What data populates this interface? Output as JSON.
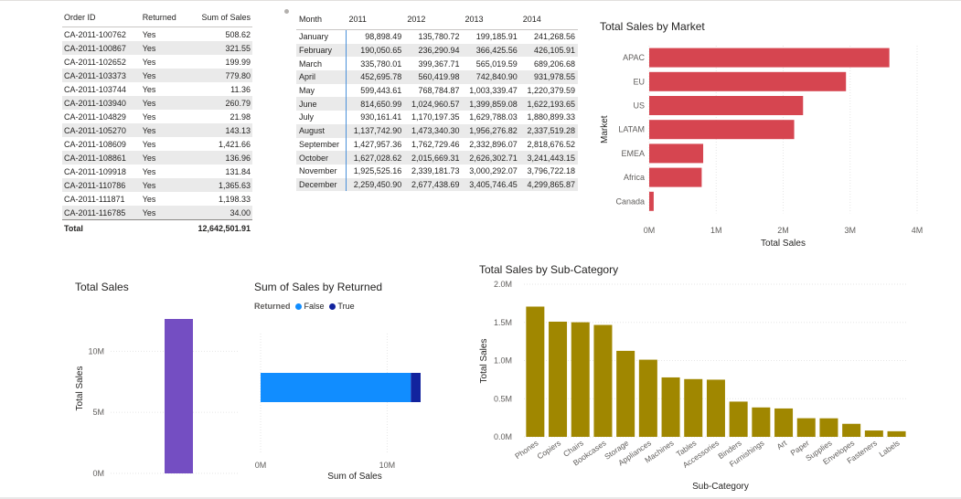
{
  "orders_table": {
    "headers": [
      "Order ID",
      "Returned",
      "Sum of Sales"
    ],
    "rows": [
      [
        "CA-2011-100762",
        "Yes",
        "508.62"
      ],
      [
        "CA-2011-100867",
        "Yes",
        "321.55"
      ],
      [
        "CA-2011-102652",
        "Yes",
        "199.99"
      ],
      [
        "CA-2011-103373",
        "Yes",
        "779.80"
      ],
      [
        "CA-2011-103744",
        "Yes",
        "11.36"
      ],
      [
        "CA-2011-103940",
        "Yes",
        "260.79"
      ],
      [
        "CA-2011-104829",
        "Yes",
        "21.98"
      ],
      [
        "CA-2011-105270",
        "Yes",
        "143.13"
      ],
      [
        "CA-2011-108609",
        "Yes",
        "1,421.66"
      ],
      [
        "CA-2011-108861",
        "Yes",
        "136.96"
      ],
      [
        "CA-2011-109918",
        "Yes",
        "131.84"
      ],
      [
        "CA-2011-110786",
        "Yes",
        "1,365.63"
      ],
      [
        "CA-2011-111871",
        "Yes",
        "1,198.33"
      ],
      [
        "CA-2011-116785",
        "Yes",
        "34.00"
      ]
    ],
    "total_label": "Total",
    "total_value": "12,642,501.91"
  },
  "month_table": {
    "headers": [
      "Month",
      "2011",
      "2012",
      "2013",
      "2014"
    ],
    "rows": [
      [
        "January",
        "98,898.49",
        "135,780.72",
        "199,185.91",
        "241,268.56"
      ],
      [
        "February",
        "190,050.65",
        "236,290.94",
        "366,425.56",
        "426,105.91"
      ],
      [
        "March",
        "335,780.01",
        "399,367.71",
        "565,019.59",
        "689,206.68"
      ],
      [
        "April",
        "452,695.78",
        "560,419.98",
        "742,840.90",
        "931,978.55"
      ],
      [
        "May",
        "599,443.61",
        "768,784.87",
        "1,003,339.47",
        "1,220,379.59"
      ],
      [
        "June",
        "814,650.99",
        "1,024,960.57",
        "1,399,859.08",
        "1,622,193.65"
      ],
      [
        "July",
        "930,161.41",
        "1,170,197.35",
        "1,629,788.03",
        "1,880,899.33"
      ],
      [
        "August",
        "1,137,742.90",
        "1,473,340.30",
        "1,956,276.82",
        "2,337,519.28"
      ],
      [
        "September",
        "1,427,957.36",
        "1,762,729.46",
        "2,332,896.07",
        "2,818,676.52"
      ],
      [
        "October",
        "1,627,028.62",
        "2,015,669.31",
        "2,626,302.71",
        "3,241,443.15"
      ],
      [
        "November",
        "1,925,525.16",
        "2,339,181.73",
        "3,000,292.07",
        "3,796,722.18"
      ],
      [
        "December",
        "2,259,450.90",
        "2,677,438.69",
        "3,405,746.45",
        "4,299,865.87"
      ]
    ]
  },
  "chart_data": [
    {
      "id": "market",
      "type": "bar",
      "orientation": "horizontal",
      "title": "Total Sales by Market",
      "xlabel": "Total Sales",
      "ylabel": "Market",
      "categories": [
        "APAC",
        "EU",
        "US",
        "LATAM",
        "EMEA",
        "Africa",
        "Canada"
      ],
      "values": [
        3585747,
        2938089,
        2297201,
        2164605,
        806161,
        783773,
        66929
      ],
      "xlim": [
        0,
        4000000
      ],
      "ticks": [
        "0M",
        "1M",
        "2M",
        "3M",
        "4M"
      ],
      "tick_values": [
        0,
        1000000,
        2000000,
        3000000,
        4000000
      ],
      "color": "#d64550",
      "grid": true
    },
    {
      "id": "total",
      "type": "bar",
      "title": "Total Sales",
      "xlabel": "",
      "ylabel": "Total Sales",
      "values": [
        12642501.91
      ],
      "ylim": [
        0,
        12642501.91
      ],
      "ticks": [
        "0M",
        "5M",
        "10M"
      ],
      "tick_values": [
        0,
        5000000,
        10000000
      ],
      "color": "#744ec2",
      "grid": true
    },
    {
      "id": "returned",
      "type": "bar",
      "orientation": "horizontal",
      "stacked": true,
      "title": "Sum of Sales by Returned",
      "xlabel": "Sum of Sales",
      "legend_title": "Returned",
      "legend_position": "top-left",
      "series": [
        {
          "name": "False",
          "values": [
            11871200
          ],
          "color": "#118dff"
        },
        {
          "name": "True",
          "values": [
            771300
          ],
          "color": "#12239e"
        }
      ],
      "xlim": [
        0,
        12642501.91
      ],
      "ticks": [
        "0M",
        "10M"
      ],
      "tick_values": [
        0,
        10000000
      ],
      "grid": true
    },
    {
      "id": "subcategory",
      "type": "bar",
      "title": "Total Sales by Sub-Category",
      "xlabel": "Sub-Category",
      "ylabel": "Total Sales",
      "categories": [
        "Phones",
        "Copiers",
        "Chairs",
        "Bookcases",
        "Storage",
        "Appliances",
        "Machines",
        "Tables",
        "Accessories",
        "Binders",
        "Furnishings",
        "Art",
        "Paper",
        "Supplies",
        "Envelopes",
        "Fasteners",
        "Labels"
      ],
      "values": [
        1706824,
        1509436,
        1501682,
        1466572,
        1127086,
        1011064,
        779061,
        757042,
        749237,
        461912,
        385578,
        372092,
        244292,
        243082,
        170904,
        83242,
        73404
      ],
      "ylim": [
        0,
        2000000
      ],
      "ticks": [
        "0.0M",
        "0.5M",
        "1.0M",
        "1.5M",
        "2.0M"
      ],
      "tick_values": [
        0,
        500000,
        1000000,
        1500000,
        2000000
      ],
      "color": "#a08700",
      "grid": true
    }
  ]
}
